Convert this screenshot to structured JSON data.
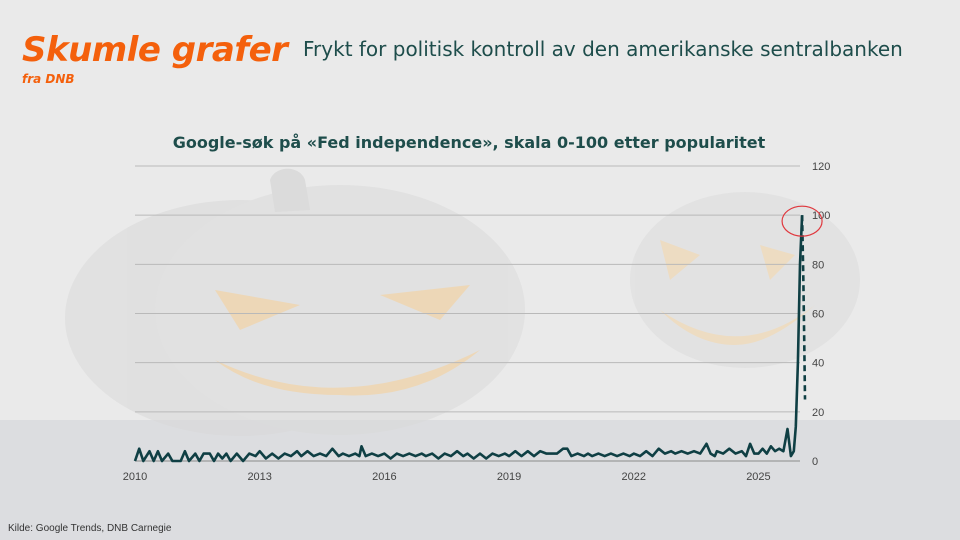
{
  "brand": {
    "title": "Skumle grafer",
    "subtitle": "fra DNB"
  },
  "headline": "Frykt for politisk kontroll av den amerikanske sentralbanken",
  "source": "Kilde: Google Trends, DNB Carnegie",
  "colors": {
    "brand": "#f4600c",
    "line": "#0f3f44",
    "highlight": "#e0383e",
    "grid": "#b9b9b9"
  },
  "chart_data": {
    "type": "line",
    "title": "Google-søk på «Fed independence», skala 0-100 etter popularitet",
    "xlabel": "",
    "ylabel": "",
    "xlim": [
      2010,
      2026
    ],
    "ylim": [
      0,
      120
    ],
    "x_ticks": [
      2010,
      2013,
      2016,
      2019,
      2022,
      2025
    ],
    "y_ticks": [
      0,
      20,
      40,
      60,
      80,
      100,
      120
    ],
    "y_axis_side": "right",
    "grid": "horizontal",
    "series": [
      {
        "style": "solid",
        "points": [
          [
            2010.0,
            0
          ],
          [
            2010.1,
            5
          ],
          [
            2010.2,
            0
          ],
          [
            2010.35,
            4
          ],
          [
            2010.45,
            0
          ],
          [
            2010.55,
            4
          ],
          [
            2010.65,
            0
          ],
          [
            2010.8,
            3
          ],
          [
            2010.9,
            0
          ],
          [
            2011.1,
            0
          ],
          [
            2011.2,
            4
          ],
          [
            2011.3,
            0
          ],
          [
            2011.45,
            3
          ],
          [
            2011.55,
            0
          ],
          [
            2011.65,
            3
          ],
          [
            2011.8,
            3
          ],
          [
            2011.9,
            0
          ],
          [
            2012.0,
            3
          ],
          [
            2012.1,
            1
          ],
          [
            2012.2,
            3
          ],
          [
            2012.3,
            0
          ],
          [
            2012.45,
            3
          ],
          [
            2012.6,
            0
          ],
          [
            2012.75,
            3
          ],
          [
            2012.9,
            2
          ],
          [
            2013.0,
            4
          ],
          [
            2013.15,
            1
          ],
          [
            2013.3,
            3
          ],
          [
            2013.45,
            1
          ],
          [
            2013.6,
            3
          ],
          [
            2013.75,
            2
          ],
          [
            2013.9,
            4
          ],
          [
            2014.0,
            2
          ],
          [
            2014.15,
            4
          ],
          [
            2014.3,
            2
          ],
          [
            2014.45,
            3
          ],
          [
            2014.6,
            2
          ],
          [
            2014.75,
            5
          ],
          [
            2014.9,
            2
          ],
          [
            2015.0,
            3
          ],
          [
            2015.15,
            2
          ],
          [
            2015.3,
            3
          ],
          [
            2015.4,
            2
          ],
          [
            2015.45,
            6
          ],
          [
            2015.55,
            2
          ],
          [
            2015.7,
            3
          ],
          [
            2015.85,
            2
          ],
          [
            2016.0,
            3
          ],
          [
            2016.15,
            1
          ],
          [
            2016.3,
            3
          ],
          [
            2016.45,
            2
          ],
          [
            2016.6,
            3
          ],
          [
            2016.75,
            2
          ],
          [
            2016.9,
            3
          ],
          [
            2017.0,
            2
          ],
          [
            2017.15,
            3
          ],
          [
            2017.3,
            1
          ],
          [
            2017.45,
            3
          ],
          [
            2017.6,
            2
          ],
          [
            2017.75,
            4
          ],
          [
            2017.9,
            2
          ],
          [
            2018.0,
            3
          ],
          [
            2018.15,
            1
          ],
          [
            2018.3,
            3
          ],
          [
            2018.45,
            1
          ],
          [
            2018.6,
            3
          ],
          [
            2018.75,
            2
          ],
          [
            2018.9,
            3
          ],
          [
            2019.0,
            2
          ],
          [
            2019.15,
            4
          ],
          [
            2019.3,
            2
          ],
          [
            2019.45,
            4
          ],
          [
            2019.6,
            2
          ],
          [
            2019.75,
            4
          ],
          [
            2019.9,
            3
          ],
          [
            2020.0,
            3
          ],
          [
            2020.15,
            3
          ],
          [
            2020.3,
            5
          ],
          [
            2020.4,
            5
          ],
          [
            2020.5,
            2
          ],
          [
            2020.65,
            3
          ],
          [
            2020.8,
            2
          ],
          [
            2020.9,
            3
          ],
          [
            2021.0,
            2
          ],
          [
            2021.15,
            3
          ],
          [
            2021.3,
            2
          ],
          [
            2021.45,
            3
          ],
          [
            2021.6,
            2
          ],
          [
            2021.75,
            3
          ],
          [
            2021.9,
            2
          ],
          [
            2022.0,
            3
          ],
          [
            2022.15,
            2
          ],
          [
            2022.3,
            4
          ],
          [
            2022.45,
            2
          ],
          [
            2022.6,
            5
          ],
          [
            2022.75,
            3
          ],
          [
            2022.9,
            4
          ],
          [
            2023.0,
            3
          ],
          [
            2023.15,
            4
          ],
          [
            2023.3,
            3
          ],
          [
            2023.45,
            4
          ],
          [
            2023.6,
            3
          ],
          [
            2023.75,
            7
          ],
          [
            2023.85,
            3
          ],
          [
            2023.95,
            2
          ],
          [
            2024.0,
            4
          ],
          [
            2024.15,
            3
          ],
          [
            2024.3,
            5
          ],
          [
            2024.45,
            3
          ],
          [
            2024.6,
            4
          ],
          [
            2024.7,
            2
          ],
          [
            2024.8,
            7
          ],
          [
            2024.9,
            3
          ],
          [
            2025.0,
            3
          ],
          [
            2025.1,
            5
          ],
          [
            2025.2,
            3
          ],
          [
            2025.3,
            6
          ],
          [
            2025.4,
            4
          ],
          [
            2025.5,
            5
          ],
          [
            2025.6,
            4
          ],
          [
            2025.7,
            13
          ],
          [
            2025.78,
            2
          ],
          [
            2025.85,
            4
          ],
          [
            2025.9,
            14
          ],
          [
            2025.95,
            40
          ],
          [
            2026.0,
            80
          ],
          [
            2026.05,
            100
          ]
        ]
      },
      {
        "style": "dashed",
        "points": [
          [
            2026.05,
            100
          ],
          [
            2026.08,
            75
          ],
          [
            2026.1,
            50
          ],
          [
            2026.12,
            25
          ]
        ]
      }
    ],
    "annotations": [
      {
        "type": "circle",
        "x": 2026.05,
        "y": 100
      }
    ]
  }
}
